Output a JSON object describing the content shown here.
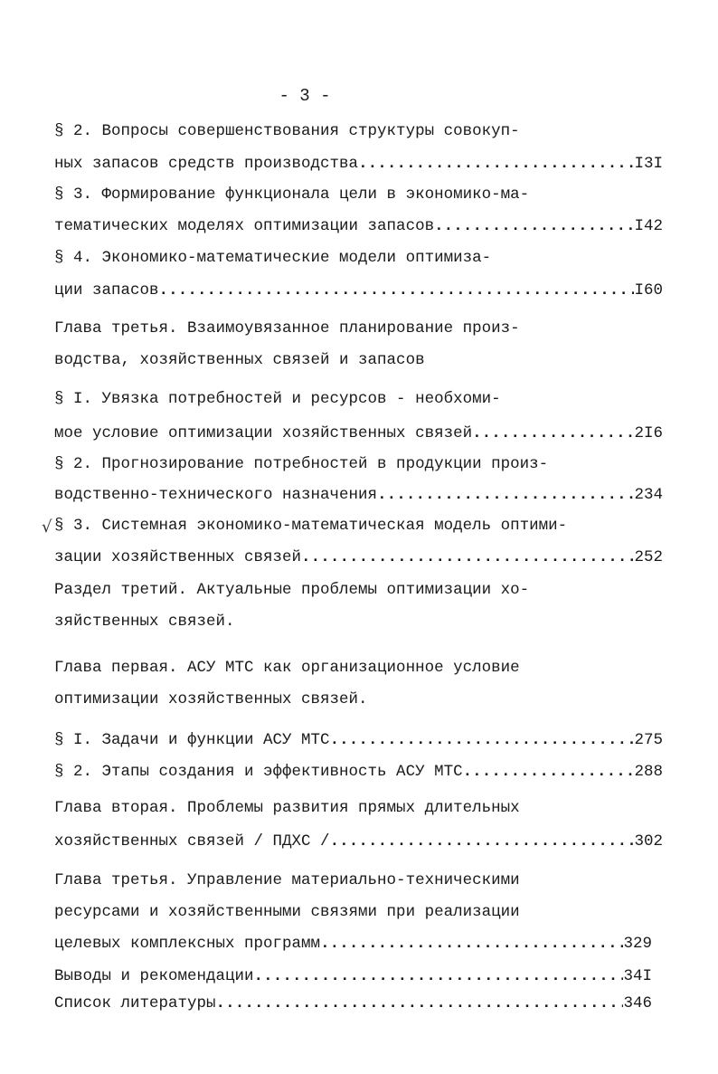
{
  "page_number": "- 3 -",
  "margin_mark": "√",
  "lines": [
    {
      "text": "§ 2. Вопросы совершенствования структуры совокуп-"
    },
    {
      "text": "ных запасов средств производства",
      "page": "I3I"
    },
    {
      "text": "§ 3. Формирование функционала цели в экономико-ма-"
    },
    {
      "text": "тематических моделях оптимизации запасов",
      "page": "I42"
    },
    {
      "text": "§ 4. Экономико-математические модели оптимиза-"
    },
    {
      "text": "ции запасов",
      "page": "I60"
    },
    {
      "text": "Глава третья. Взаимоувязанное планирование произ-"
    },
    {
      "text": "водства, хозяйственных связей и запасов"
    },
    {
      "text": "§ I. Увязка потребностей и ресурсов - необхоми-"
    },
    {
      "text": "мое условие оптимизации хозяйственных связей",
      "page": "2I6"
    },
    {
      "text": "§ 2. Прогнозирование потребностей в продукции произ-"
    },
    {
      "text": "водственно-технического назначения",
      "page": "234"
    },
    {
      "text": "§ 3. Системная экономико-математическая модель оптими-"
    },
    {
      "text": "зации хозяйственных связей",
      "page": "252"
    },
    {
      "text": "Раздел третий. Актуальные проблемы оптимизации хо-"
    },
    {
      "text": "зяйственных связей."
    },
    {
      "text": "Глава первая. АСУ МТС как организационное условие"
    },
    {
      "text": "оптимизации хозяйственных связей."
    },
    {
      "text": "§ I. Задачи и функции АСУ МТС",
      "page": "275"
    },
    {
      "text": "§ 2. Этапы создания и эффективность АСУ МТС",
      "page": "288"
    },
    {
      "text": "Глава вторая. Проблемы развития прямых длительных"
    },
    {
      "text": "хозяйственных связей / ПДХС /",
      "page": "302"
    },
    {
      "text": "Глава третья. Управление материально-техническими"
    },
    {
      "text": "ресурсами и хозяйственными связями при реализации"
    },
    {
      "text": "целевых комплексных программ",
      "page": "329"
    },
    {
      "text": "Выводы и рекомендации",
      "page": "34I"
    },
    {
      "text": "Список литературы",
      "page": "346"
    }
  ]
}
